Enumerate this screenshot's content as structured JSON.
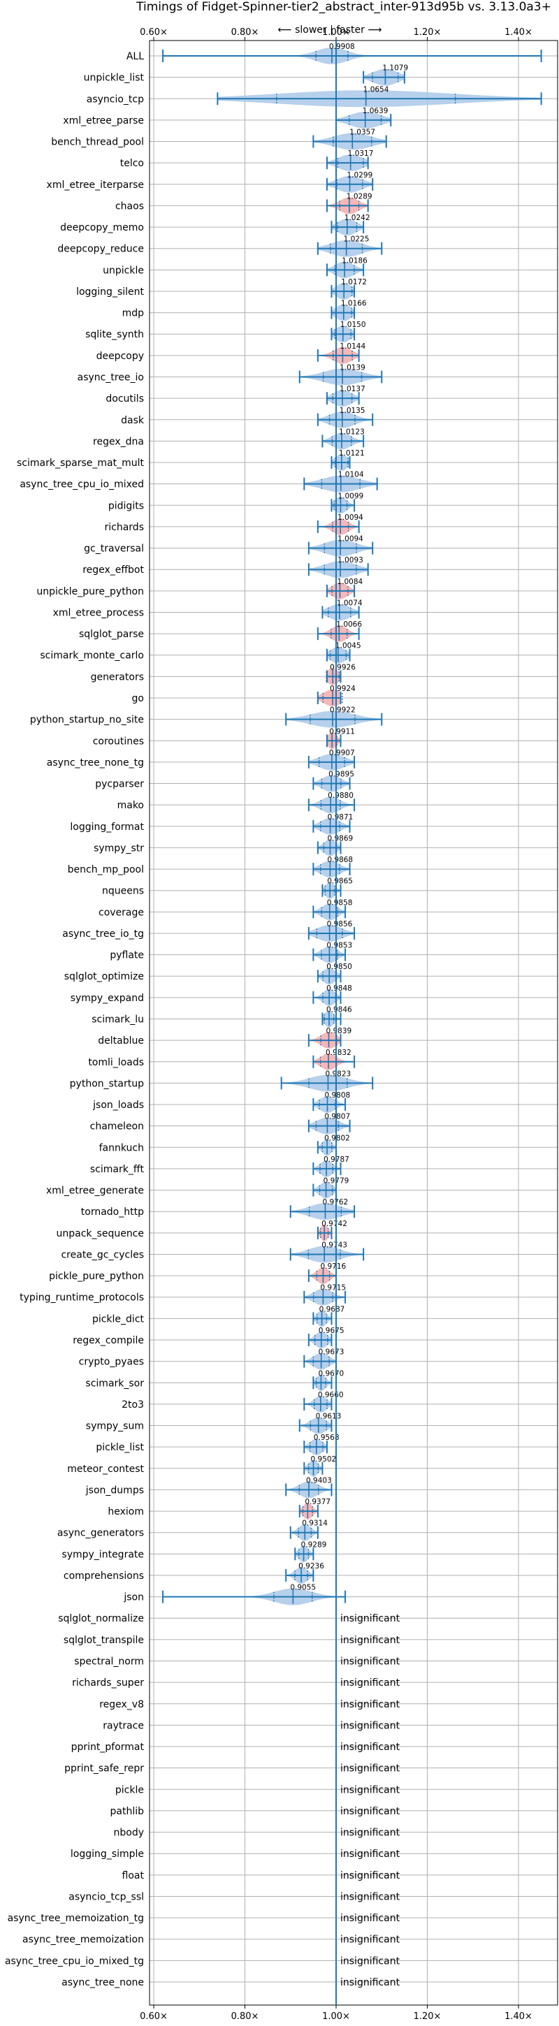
{
  "chart_data": {
    "type": "violin",
    "title": "Timings of Fidget-Spinner-tier2_abstract_inter-913d95b vs. 3.13.0a3+",
    "subtitle": "⟵ slower | faster ⟶",
    "x_ticks": [
      "0.60×",
      "0.80×",
      "1.00×",
      "1.20×",
      "1.40×"
    ],
    "x_tick_values": [
      0.6,
      0.8,
      1.0,
      1.2,
      1.4
    ],
    "xlim": [
      0.6,
      1.45
    ],
    "insignificant_label": "insignificant",
    "colors": {
      "faster": "#aac8e8",
      "slower": "#f4aaaa",
      "line": "#1f77b4",
      "grid": "#b0b0b0"
    },
    "benchmarks": [
      {
        "name": "ALL",
        "value": 0.9908,
        "min": 0.62,
        "max": 1.45,
        "spread": 0.05,
        "color": "blue"
      },
      {
        "name": "unpickle_list",
        "value": 1.1079,
        "min": 1.06,
        "max": 1.15,
        "spread": 0.04,
        "color": "blue"
      },
      {
        "name": "asyncio_tcp",
        "value": 1.0654,
        "min": 0.74,
        "max": 1.45,
        "spread": 0.28,
        "color": "blue"
      },
      {
        "name": "xml_etree_parse",
        "value": 1.0639,
        "min": 1.0,
        "max": 1.12,
        "spread": 0.05,
        "color": "blue"
      },
      {
        "name": "bench_thread_pool",
        "value": 1.0357,
        "min": 0.95,
        "max": 1.11,
        "spread": 0.06,
        "color": "blue"
      },
      {
        "name": "telco",
        "value": 1.0317,
        "min": 0.98,
        "max": 1.07,
        "spread": 0.04,
        "color": "blue"
      },
      {
        "name": "xml_etree_iterparse",
        "value": 1.0299,
        "min": 0.98,
        "max": 1.08,
        "spread": 0.04,
        "color": "blue"
      },
      {
        "name": "chaos",
        "value": 1.0289,
        "min": 0.98,
        "max": 1.07,
        "spread": 0.03,
        "color": "red"
      },
      {
        "name": "deepcopy_memo",
        "value": 1.0242,
        "min": 0.99,
        "max": 1.06,
        "spread": 0.03,
        "color": "blue"
      },
      {
        "name": "deepcopy_reduce",
        "value": 1.0225,
        "min": 0.96,
        "max": 1.1,
        "spread": 0.05,
        "color": "blue"
      },
      {
        "name": "unpickle",
        "value": 1.0186,
        "min": 0.98,
        "max": 1.06,
        "spread": 0.03,
        "color": "blue"
      },
      {
        "name": "logging_silent",
        "value": 1.0172,
        "min": 0.99,
        "max": 1.04,
        "spread": 0.025,
        "color": "blue"
      },
      {
        "name": "mdp",
        "value": 1.0166,
        "min": 0.99,
        "max": 1.04,
        "spread": 0.025,
        "color": "blue"
      },
      {
        "name": "sqlite_synth",
        "value": 1.015,
        "min": 0.99,
        "max": 1.04,
        "spread": 0.025,
        "color": "blue"
      },
      {
        "name": "deepcopy",
        "value": 1.0144,
        "min": 0.96,
        "max": 1.05,
        "spread": 0.03,
        "color": "red"
      },
      {
        "name": "async_tree_io",
        "value": 1.0139,
        "min": 0.92,
        "max": 1.1,
        "spread": 0.06,
        "color": "blue"
      },
      {
        "name": "docutils",
        "value": 1.0137,
        "min": 0.98,
        "max": 1.05,
        "spread": 0.03,
        "color": "blue"
      },
      {
        "name": "dask",
        "value": 1.0135,
        "min": 0.96,
        "max": 1.08,
        "spread": 0.04,
        "color": "blue"
      },
      {
        "name": "regex_dna",
        "value": 1.0123,
        "min": 0.97,
        "max": 1.06,
        "spread": 0.03,
        "color": "blue"
      },
      {
        "name": "scimark_sparse_mat_mult",
        "value": 1.0121,
        "min": 0.99,
        "max": 1.03,
        "spread": 0.02,
        "color": "blue"
      },
      {
        "name": "async_tree_cpu_io_mixed",
        "value": 1.0104,
        "min": 0.93,
        "max": 1.09,
        "spread": 0.06,
        "color": "blue"
      },
      {
        "name": "pidigits",
        "value": 1.0099,
        "min": 0.99,
        "max": 1.04,
        "spread": 0.02,
        "color": "blue"
      },
      {
        "name": "richards",
        "value": 1.0094,
        "min": 0.96,
        "max": 1.05,
        "spread": 0.025,
        "color": "red"
      },
      {
        "name": "gc_traversal",
        "value": 1.0094,
        "min": 0.94,
        "max": 1.08,
        "spread": 0.05,
        "color": "blue"
      },
      {
        "name": "regex_effbot",
        "value": 1.0093,
        "min": 0.94,
        "max": 1.07,
        "spread": 0.05,
        "color": "blue"
      },
      {
        "name": "unpickle_pure_python",
        "value": 1.0084,
        "min": 0.98,
        "max": 1.04,
        "spread": 0.025,
        "color": "red"
      },
      {
        "name": "xml_etree_process",
        "value": 1.0074,
        "min": 0.97,
        "max": 1.05,
        "spread": 0.035,
        "color": "blue"
      },
      {
        "name": "sqlglot_parse",
        "value": 1.0066,
        "min": 0.96,
        "max": 1.05,
        "spread": 0.025,
        "color": "red"
      },
      {
        "name": "scimark_monte_carlo",
        "value": 1.0045,
        "min": 0.98,
        "max": 1.03,
        "spread": 0.025,
        "color": "blue"
      },
      {
        "name": "generators",
        "value": 0.9926,
        "min": 0.98,
        "max": 1.01,
        "spread": 0.02,
        "color": "red"
      },
      {
        "name": "go",
        "value": 0.9924,
        "min": 0.96,
        "max": 1.01,
        "spread": 0.03,
        "color": "red"
      },
      {
        "name": "python_startup_no_site",
        "value": 0.9922,
        "min": 0.89,
        "max": 1.1,
        "spread": 0.07,
        "color": "blue"
      },
      {
        "name": "coroutines",
        "value": 0.9911,
        "min": 0.98,
        "max": 1.01,
        "spread": 0.015,
        "color": "red"
      },
      {
        "name": "async_tree_none_tg",
        "value": 0.9907,
        "min": 0.94,
        "max": 1.04,
        "spread": 0.04,
        "color": "blue"
      },
      {
        "name": "pycparser",
        "value": 0.9895,
        "min": 0.95,
        "max": 1.03,
        "spread": 0.03,
        "color": "blue"
      },
      {
        "name": "mako",
        "value": 0.988,
        "min": 0.94,
        "max": 1.04,
        "spread": 0.03,
        "color": "blue"
      },
      {
        "name": "logging_format",
        "value": 0.9871,
        "min": 0.95,
        "max": 1.03,
        "spread": 0.03,
        "color": "blue"
      },
      {
        "name": "sympy_str",
        "value": 0.9869,
        "min": 0.96,
        "max": 1.01,
        "spread": 0.02,
        "color": "blue"
      },
      {
        "name": "bench_mp_pool",
        "value": 0.9868,
        "min": 0.95,
        "max": 1.03,
        "spread": 0.03,
        "color": "blue"
      },
      {
        "name": "nqueens",
        "value": 0.9865,
        "min": 0.97,
        "max": 1.01,
        "spread": 0.015,
        "color": "blue"
      },
      {
        "name": "coverage",
        "value": 0.9858,
        "min": 0.95,
        "max": 1.02,
        "spread": 0.025,
        "color": "blue"
      },
      {
        "name": "async_tree_io_tg",
        "value": 0.9856,
        "min": 0.94,
        "max": 1.04,
        "spread": 0.04,
        "color": "blue"
      },
      {
        "name": "pyflate",
        "value": 0.9853,
        "min": 0.95,
        "max": 1.02,
        "spread": 0.025,
        "color": "blue"
      },
      {
        "name": "sqlglot_optimize",
        "value": 0.985,
        "min": 0.96,
        "max": 1.01,
        "spread": 0.02,
        "color": "blue"
      },
      {
        "name": "sympy_expand",
        "value": 0.9848,
        "min": 0.95,
        "max": 1.01,
        "spread": 0.02,
        "color": "blue"
      },
      {
        "name": "scimark_lu",
        "value": 0.9846,
        "min": 0.97,
        "max": 1.01,
        "spread": 0.015,
        "color": "blue"
      },
      {
        "name": "deltablue",
        "value": 0.9839,
        "min": 0.94,
        "max": 1.01,
        "spread": 0.025,
        "color": "red"
      },
      {
        "name": "tomli_loads",
        "value": 0.9832,
        "min": 0.95,
        "max": 1.04,
        "spread": 0.025,
        "color": "red"
      },
      {
        "name": "python_startup",
        "value": 0.9823,
        "min": 0.88,
        "max": 1.08,
        "spread": 0.06,
        "color": "blue"
      },
      {
        "name": "json_loads",
        "value": 0.9808,
        "min": 0.95,
        "max": 1.02,
        "spread": 0.025,
        "color": "blue"
      },
      {
        "name": "chameleon",
        "value": 0.9807,
        "min": 0.94,
        "max": 1.03,
        "spread": 0.035,
        "color": "blue"
      },
      {
        "name": "fannkuch",
        "value": 0.9802,
        "min": 0.96,
        "max": 1.0,
        "spread": 0.015,
        "color": "blue"
      },
      {
        "name": "scimark_fft",
        "value": 0.9787,
        "min": 0.95,
        "max": 1.01,
        "spread": 0.02,
        "color": "blue"
      },
      {
        "name": "xml_etree_generate",
        "value": 0.9779,
        "min": 0.95,
        "max": 1.0,
        "spread": 0.02,
        "color": "blue"
      },
      {
        "name": "tornado_http",
        "value": 0.9762,
        "min": 0.9,
        "max": 1.04,
        "spread": 0.05,
        "color": "blue"
      },
      {
        "name": "unpack_sequence",
        "value": 0.9742,
        "min": 0.96,
        "max": 0.99,
        "spread": 0.012,
        "color": "red"
      },
      {
        "name": "create_gc_cycles",
        "value": 0.9743,
        "min": 0.9,
        "max": 1.06,
        "spread": 0.05,
        "color": "blue"
      },
      {
        "name": "pickle_pure_python",
        "value": 0.9716,
        "min": 0.94,
        "max": 1.0,
        "spread": 0.02,
        "color": "red"
      },
      {
        "name": "typing_runtime_protocols",
        "value": 0.9715,
        "min": 0.93,
        "max": 1.02,
        "spread": 0.03,
        "color": "blue"
      },
      {
        "name": "pickle_dict",
        "value": 0.9687,
        "min": 0.95,
        "max": 0.99,
        "spread": 0.015,
        "color": "blue"
      },
      {
        "name": "regex_compile",
        "value": 0.9675,
        "min": 0.94,
        "max": 0.99,
        "spread": 0.02,
        "color": "blue"
      },
      {
        "name": "crypto_pyaes",
        "value": 0.9673,
        "min": 0.93,
        "max": 1.0,
        "spread": 0.025,
        "color": "blue"
      },
      {
        "name": "scimark_sor",
        "value": 0.967,
        "min": 0.95,
        "max": 0.99,
        "spread": 0.015,
        "color": "blue"
      },
      {
        "name": "2to3",
        "value": 0.966,
        "min": 0.93,
        "max": 0.99,
        "spread": 0.02,
        "color": "blue"
      },
      {
        "name": "sympy_sum",
        "value": 0.9613,
        "min": 0.92,
        "max": 0.99,
        "spread": 0.025,
        "color": "blue"
      },
      {
        "name": "pickle_list",
        "value": 0.9568,
        "min": 0.93,
        "max": 0.98,
        "spread": 0.02,
        "color": "blue"
      },
      {
        "name": "meteor_contest",
        "value": 0.9502,
        "min": 0.93,
        "max": 0.97,
        "spread": 0.015,
        "color": "blue"
      },
      {
        "name": "json_dumps",
        "value": 0.9403,
        "min": 0.89,
        "max": 0.99,
        "spread": 0.03,
        "color": "blue"
      },
      {
        "name": "hexiom",
        "value": 0.9377,
        "min": 0.92,
        "max": 0.96,
        "spread": 0.015,
        "color": "red"
      },
      {
        "name": "async_generators",
        "value": 0.9314,
        "min": 0.9,
        "max": 0.96,
        "spread": 0.02,
        "color": "blue"
      },
      {
        "name": "sympy_integrate",
        "value": 0.9289,
        "min": 0.91,
        "max": 0.95,
        "spread": 0.015,
        "color": "blue"
      },
      {
        "name": "comprehensions",
        "value": 0.9236,
        "min": 0.89,
        "max": 0.95,
        "spread": 0.02,
        "color": "blue"
      },
      {
        "name": "json",
        "value": 0.9055,
        "min": 0.62,
        "max": 1.02,
        "spread": 0.06,
        "color": "blue"
      },
      {
        "name": "sqlglot_normalize",
        "value": null
      },
      {
        "name": "sqlglot_transpile",
        "value": null
      },
      {
        "name": "spectral_norm",
        "value": null
      },
      {
        "name": "richards_super",
        "value": null
      },
      {
        "name": "regex_v8",
        "value": null
      },
      {
        "name": "raytrace",
        "value": null
      },
      {
        "name": "pprint_pformat",
        "value": null
      },
      {
        "name": "pprint_safe_repr",
        "value": null
      },
      {
        "name": "pickle",
        "value": null
      },
      {
        "name": "pathlib",
        "value": null
      },
      {
        "name": "nbody",
        "value": null
      },
      {
        "name": "logging_simple",
        "value": null
      },
      {
        "name": "float",
        "value": null
      },
      {
        "name": "asyncio_tcp_ssl",
        "value": null
      },
      {
        "name": "async_tree_memoization_tg",
        "value": null
      },
      {
        "name": "async_tree_memoization",
        "value": null
      },
      {
        "name": "async_tree_cpu_io_mixed_tg",
        "value": null
      },
      {
        "name": "async_tree_none",
        "value": null
      }
    ]
  }
}
